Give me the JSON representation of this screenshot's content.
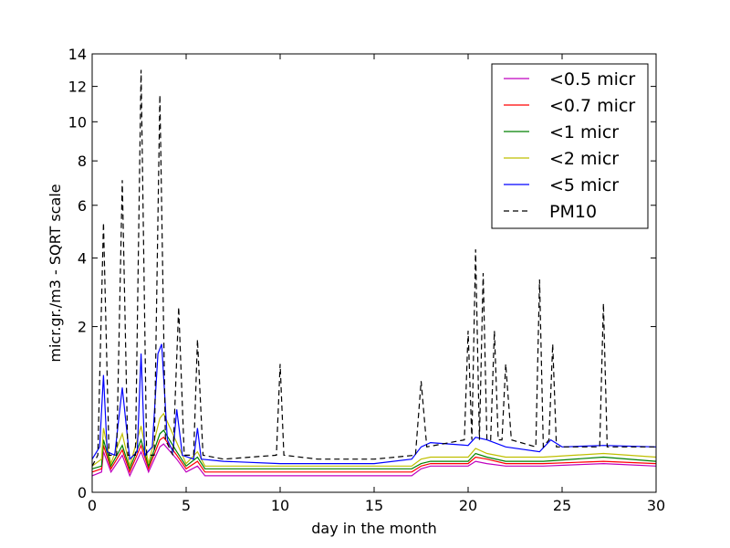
{
  "chart_data": {
    "type": "line",
    "title": "",
    "xlabel": "day in the month",
    "ylabel": "micr.gr./m3 - SQRT scale",
    "y_scale": "sqrt",
    "xlim": [
      0,
      30
    ],
    "ylim": [
      0,
      14
    ],
    "x_ticks": [
      0,
      5,
      10,
      15,
      20,
      25,
      30
    ],
    "y_ticks": [
      0,
      2,
      4,
      6,
      8,
      10,
      12,
      14
    ],
    "grid": false,
    "legend_position": "top-right",
    "series": [
      {
        "name": "<0.5 micr",
        "color": "#bf00bf",
        "dash": "solid",
        "x": [
          0.0,
          0.5,
          0.6,
          1.0,
          1.6,
          2.0,
          2.6,
          3.0,
          3.6,
          3.8,
          4.5,
          5.0,
          5.6,
          6.0,
          10.0,
          15.0,
          17.0,
          17.5,
          18.0,
          20.0,
          20.4,
          21.0,
          22.0,
          24.0,
          27.2,
          30.0
        ],
        "values": [
          0.02,
          0.03,
          0.12,
          0.03,
          0.1,
          0.02,
          0.12,
          0.03,
          0.15,
          0.17,
          0.08,
          0.03,
          0.05,
          0.02,
          0.02,
          0.02,
          0.02,
          0.04,
          0.05,
          0.05,
          0.07,
          0.06,
          0.05,
          0.05,
          0.06,
          0.05
        ]
      },
      {
        "name": "<0.7 micr",
        "color": "#ff0000",
        "dash": "solid",
        "x": [
          0.0,
          0.5,
          0.6,
          1.0,
          1.6,
          2.0,
          2.6,
          3.0,
          3.6,
          3.8,
          4.5,
          5.0,
          5.6,
          6.0,
          10.0,
          15.0,
          17.0,
          17.5,
          18.0,
          20.0,
          20.4,
          21.0,
          22.0,
          24.0,
          27.2,
          30.0
        ],
        "values": [
          0.03,
          0.04,
          0.16,
          0.04,
          0.13,
          0.03,
          0.16,
          0.04,
          0.2,
          0.22,
          0.1,
          0.04,
          0.07,
          0.03,
          0.03,
          0.03,
          0.03,
          0.05,
          0.06,
          0.06,
          0.09,
          0.08,
          0.06,
          0.06,
          0.07,
          0.06
        ]
      },
      {
        "name": "<1 micr",
        "color": "#008000",
        "dash": "solid",
        "x": [
          0.0,
          0.5,
          0.6,
          1.0,
          1.6,
          2.0,
          2.6,
          3.0,
          3.6,
          3.8,
          4.5,
          5.0,
          5.6,
          6.0,
          10.0,
          15.0,
          17.0,
          17.5,
          18.0,
          20.0,
          20.4,
          21.0,
          22.0,
          24.0,
          27.2,
          30.0
        ],
        "values": [
          0.04,
          0.05,
          0.2,
          0.05,
          0.16,
          0.04,
          0.2,
          0.05,
          0.25,
          0.28,
          0.12,
          0.05,
          0.09,
          0.04,
          0.04,
          0.04,
          0.04,
          0.06,
          0.07,
          0.07,
          0.11,
          0.09,
          0.07,
          0.07,
          0.09,
          0.07
        ]
      },
      {
        "name": "<2 micr",
        "color": "#bfbf00",
        "dash": "solid",
        "x": [
          0.0,
          0.5,
          0.6,
          1.0,
          1.6,
          2.0,
          2.6,
          3.0,
          3.6,
          3.8,
          4.5,
          5.0,
          5.6,
          6.0,
          10.0,
          15.0,
          17.0,
          17.5,
          18.0,
          20.0,
          20.4,
          21.0,
          22.0,
          24.0,
          27.2,
          30.0
        ],
        "values": [
          0.05,
          0.08,
          0.3,
          0.06,
          0.25,
          0.05,
          0.32,
          0.06,
          0.4,
          0.45,
          0.18,
          0.06,
          0.12,
          0.05,
          0.05,
          0.05,
          0.05,
          0.08,
          0.09,
          0.09,
          0.14,
          0.11,
          0.09,
          0.09,
          0.11,
          0.09
        ]
      },
      {
        "name": "<5 micr",
        "color": "#0000ff",
        "dash": "solid",
        "x": [
          0.0,
          0.4,
          0.6,
          0.8,
          1.2,
          1.6,
          2.0,
          2.4,
          2.6,
          2.8,
          3.2,
          3.5,
          3.7,
          4.0,
          4.3,
          4.5,
          4.8,
          5.4,
          5.6,
          5.8,
          7.0,
          10.0,
          12.0,
          15.0,
          17.0,
          17.5,
          18.0,
          20.0,
          20.4,
          21.0,
          22.0,
          23.8,
          24.4,
          25.0,
          27.2,
          30.0
        ],
        "values": [
          0.08,
          0.15,
          1.0,
          0.12,
          0.1,
          0.8,
          0.08,
          0.12,
          1.4,
          0.1,
          0.15,
          1.4,
          1.6,
          0.2,
          0.12,
          0.5,
          0.1,
          0.08,
          0.3,
          0.08,
          0.07,
          0.06,
          0.06,
          0.06,
          0.08,
          0.15,
          0.18,
          0.16,
          0.22,
          0.2,
          0.15,
          0.12,
          0.2,
          0.15,
          0.16,
          0.15
        ]
      },
      {
        "name": "PM10",
        "color": "#000000",
        "dash": "dashed",
        "x": [
          0.0,
          0.3,
          0.6,
          0.9,
          1.3,
          1.6,
          1.9,
          2.3,
          2.6,
          2.9,
          3.3,
          3.6,
          3.9,
          4.3,
          4.6,
          4.9,
          5.4,
          5.6,
          5.9,
          7.0,
          9.8,
          10.0,
          10.2,
          12.0,
          15.0,
          17.2,
          17.5,
          17.8,
          19.8,
          20.0,
          20.2,
          20.4,
          20.6,
          20.8,
          21.0,
          21.2,
          21.4,
          21.6,
          21.8,
          22.0,
          22.3,
          23.6,
          23.8,
          24.0,
          24.3,
          24.5,
          24.7,
          27.0,
          27.2,
          27.4,
          30.0
        ],
        "values": [
          0.05,
          0.1,
          5.3,
          0.1,
          0.1,
          7.1,
          0.1,
          0.1,
          13.0,
          0.1,
          0.1,
          11.5,
          0.2,
          0.1,
          2.5,
          0.1,
          0.1,
          1.7,
          0.1,
          0.08,
          0.1,
          1.2,
          0.1,
          0.08,
          0.08,
          0.1,
          0.9,
          0.15,
          0.2,
          1.9,
          0.2,
          4.3,
          0.2,
          3.5,
          0.2,
          0.2,
          1.9,
          0.2,
          0.2,
          1.2,
          0.2,
          0.15,
          3.3,
          0.15,
          0.2,
          1.6,
          0.15,
          0.15,
          2.6,
          0.15,
          0.15
        ]
      }
    ]
  }
}
